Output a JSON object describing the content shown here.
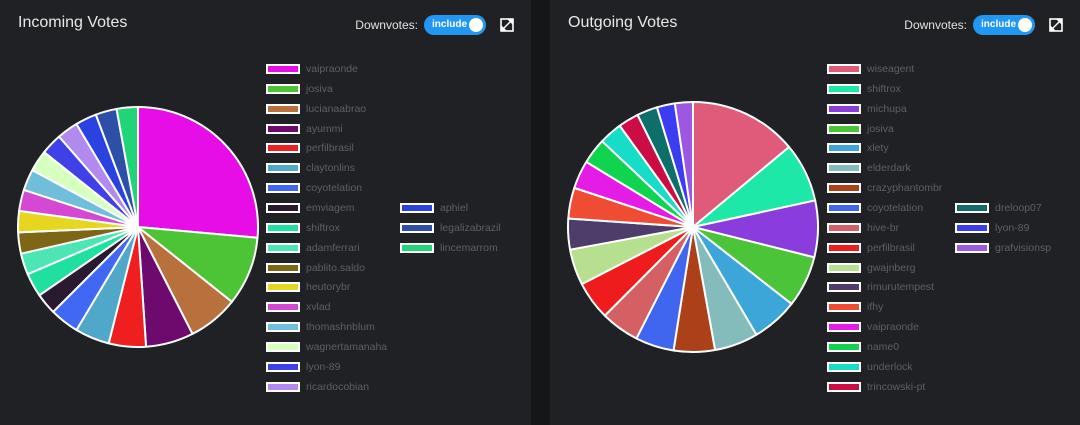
{
  "charts": [
    {
      "title": "Incoming Votes",
      "downvotes_label": "Downvotes:",
      "toggle_label": "include",
      "expand_icon": "expand-icon",
      "chart_data": {
        "type": "pie",
        "title": "Incoming Votes",
        "legend_position": "right",
        "labels": [
          "vaipraonde",
          "josiva",
          "lucianaabrao",
          "ayummi",
          "perfilbrasil",
          "claytonlins",
          "coyotelation",
          "emviagem",
          "shiftrox",
          "adamferrari",
          "pablito.saldo",
          "heutorybr",
          "xvlad",
          "thomashnblum",
          "wagnertamanaha",
          "lyon-89",
          "ricardocobian",
          "aphiel",
          "legalizabrazil",
          "lincemarrom"
        ],
        "values": [
          74,
          26,
          19,
          18,
          14,
          13,
          11,
          8,
          9,
          8,
          8,
          8,
          8,
          8,
          8,
          8,
          8,
          8,
          8,
          8
        ],
        "colors": [
          "#e60de6",
          "#4dc435",
          "#b8703c",
          "#6e0a6e",
          "#ef1f1f",
          "#4fa7c9",
          "#4068f5",
          "#2a1a30",
          "#20e0a0",
          "#4ce6b4",
          "#7e6616",
          "#e6d620",
          "#d448d4",
          "#6fbfdc",
          "#d7ffc0",
          "#4040e8",
          "#b08aee",
          "#2a42e0",
          "#2c50a8",
          "#22d478"
        ]
      }
    },
    {
      "title": "Outgoing Votes",
      "downvotes_label": "Downvotes:",
      "toggle_label": "include",
      "expand_icon": "expand-icon",
      "chart_data": {
        "type": "pie",
        "title": "Outgoing Votes",
        "legend_position": "right",
        "labels": [
          "wiseagent",
          "shiftrox",
          "michupa",
          "josiva",
          "xlety",
          "elderdark",
          "crazyphantombr",
          "coyotelation",
          "hive-br",
          "perfilbrasil",
          "gwajnberg",
          "rimurutempest",
          "ifhy",
          "vaipraonde",
          "name0",
          "underlock",
          "trincowski-pt",
          "dreloop07",
          "lyon-89",
          "grafvisionsp"
        ],
        "values": [
          42,
          23,
          22,
          20,
          18,
          17,
          16,
          15,
          15,
          15,
          14,
          12,
          12,
          11,
          10,
          9,
          8,
          8,
          7,
          7
        ],
        "colors": [
          "#e05a7a",
          "#1ee8a8",
          "#8a3cdc",
          "#4cc43a",
          "#3ca6d8",
          "#84bcbc",
          "#ac4018",
          "#4066f0",
          "#d46064",
          "#ee1c1c",
          "#b6e090",
          "#4e3c6a",
          "#f04c34",
          "#e41ce6",
          "#10d450",
          "#16dcc8",
          "#cc0c44",
          "#0e6e6a",
          "#3c3cf0",
          "#9c58e0"
        ]
      }
    }
  ]
}
